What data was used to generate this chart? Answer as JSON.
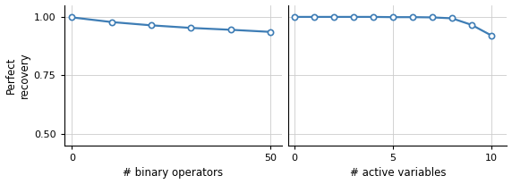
{
  "plot1": {
    "x": [
      0,
      10,
      20,
      30,
      40,
      50
    ],
    "y": [
      0.997,
      0.977,
      0.963,
      0.952,
      0.944,
      0.935
    ],
    "xlabel": "# binary operators",
    "xlim": [
      -2,
      53
    ],
    "xticks": [
      0,
      50
    ]
  },
  "plot2": {
    "x": [
      0,
      1,
      2,
      3,
      4,
      5,
      6,
      7,
      8,
      9,
      10
    ],
    "y": [
      0.999,
      0.999,
      0.999,
      0.999,
      0.999,
      0.998,
      0.998,
      0.997,
      0.993,
      0.965,
      0.92
    ],
    "xlabel": "# active variables",
    "xlim": [
      -0.3,
      10.8
    ],
    "xticks": [
      0,
      5,
      10
    ]
  },
  "ylabel": "Perfect\nrecovery",
  "ylim": [
    0.45,
    1.05
  ],
  "yticks": [
    0.5,
    0.75,
    1.0
  ],
  "line_color": "#3e7db5",
  "marker": "o",
  "marker_facecolor": "white",
  "marker_edgecolor": "#3e7db5",
  "markersize": 4.5,
  "linewidth": 1.6
}
